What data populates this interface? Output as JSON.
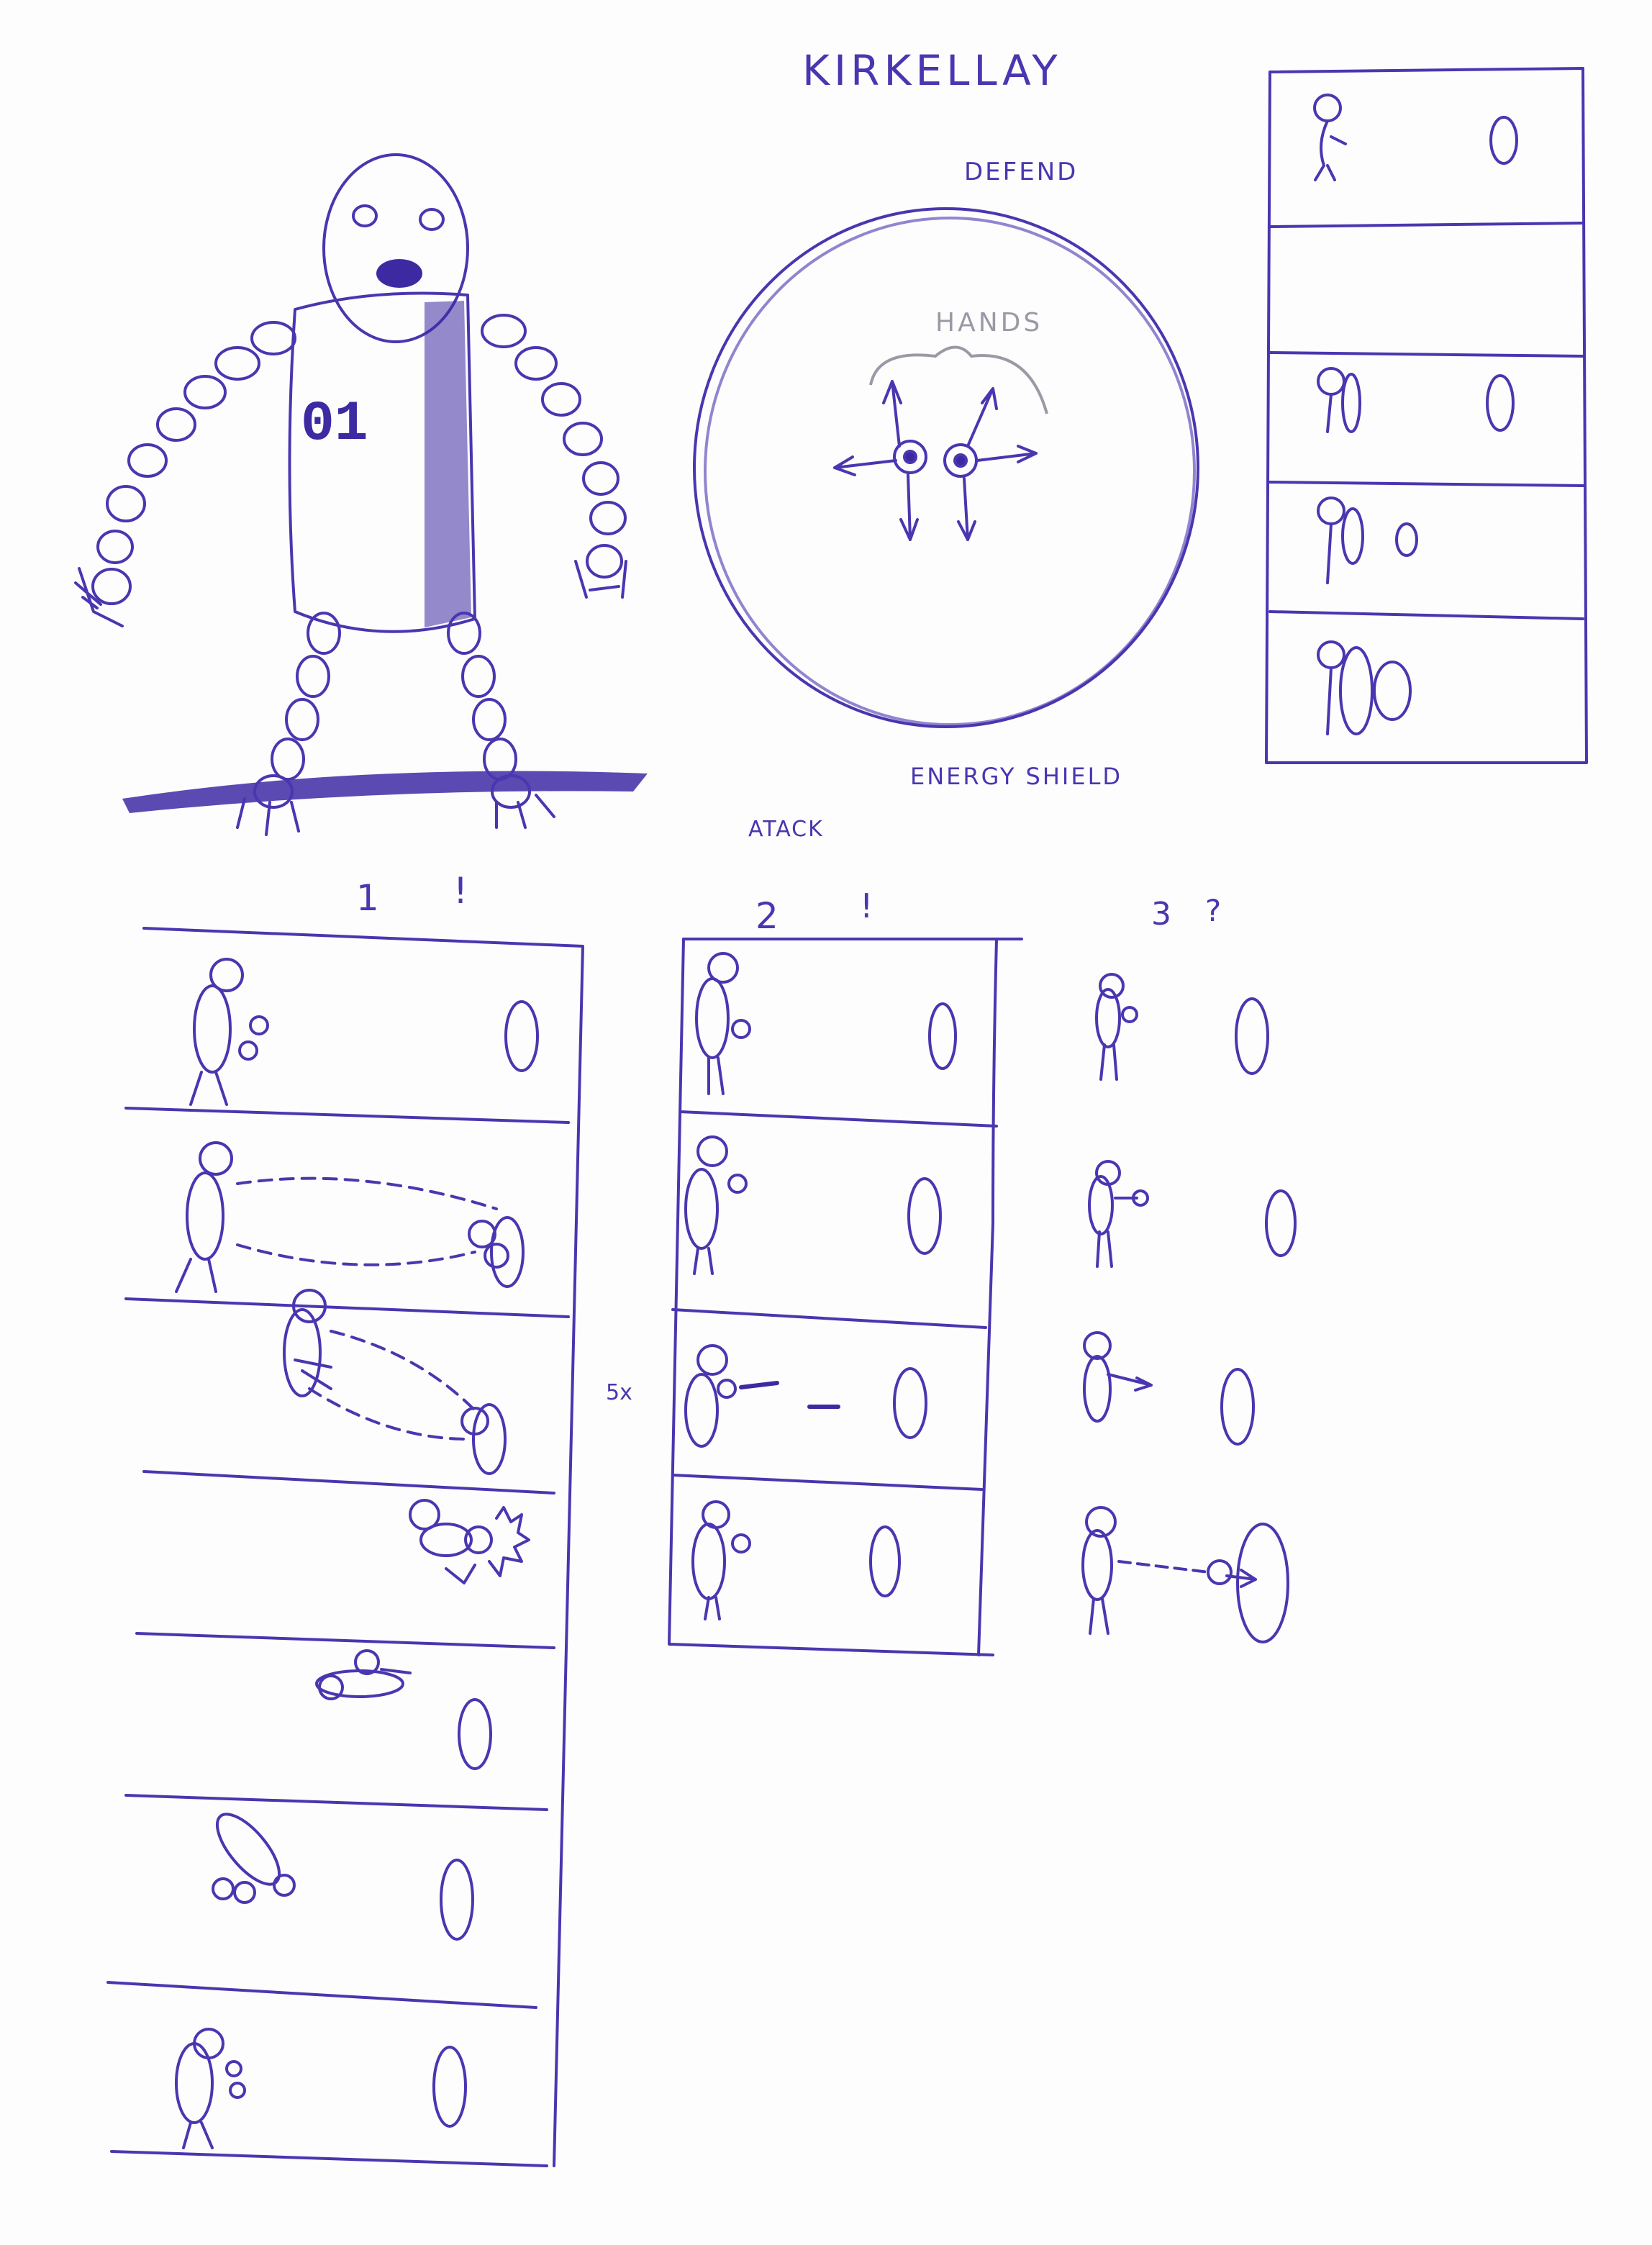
{
  "sheet": {
    "title": "KIRKELLAY",
    "robot": {
      "chest_number": "01"
    },
    "defend": {
      "label": "DEFEND",
      "hands_label": "HANDS",
      "shield_label": "ENERGY SHIELD"
    },
    "attack": {
      "label": "ATACK",
      "columns": [
        {
          "number": "1",
          "mark": "!"
        },
        {
          "number": "2",
          "mark": "!"
        },
        {
          "number": "3",
          "mark": "?"
        }
      ],
      "repeat_note": "5x"
    }
  },
  "colors": {
    "ink": "#4a36b0",
    "pencil": "#9a9aa6",
    "paper": "#fdfdfd"
  },
  "icons": [
    "robot-drawing",
    "energy-shield-circle",
    "stick-figure",
    "target-oval"
  ]
}
